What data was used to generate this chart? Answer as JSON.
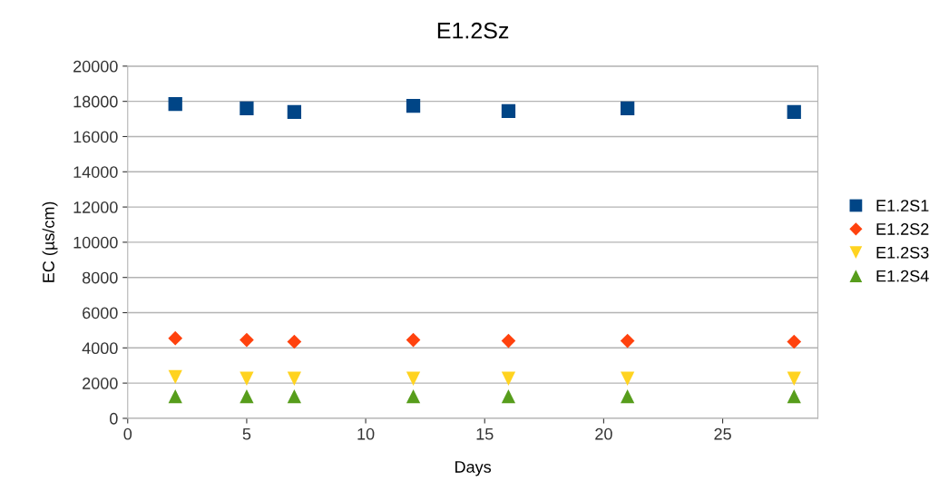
{
  "chart_data": {
    "type": "scatter",
    "title": "E1.2Sz",
    "xlabel": "Days",
    "ylabel": "EC (µs/cm)",
    "x": [
      2,
      5,
      7,
      12,
      16,
      21,
      28
    ],
    "series": [
      {
        "name": "E1.2S1",
        "color": "#004586",
        "marker": "square",
        "values": [
          17850,
          17600,
          17400,
          17750,
          17450,
          17600,
          17400
        ]
      },
      {
        "name": "E1.2S2",
        "color": "#ff420e",
        "marker": "diamond",
        "values": [
          4550,
          4450,
          4350,
          4450,
          4400,
          4400,
          4350
        ]
      },
      {
        "name": "E1.2S3",
        "color": "#ffd320",
        "marker": "triangle_down",
        "values": [
          2350,
          2250,
          2250,
          2250,
          2250,
          2250,
          2250
        ]
      },
      {
        "name": "E1.2S4",
        "color": "#579d1c",
        "marker": "triangle",
        "values": [
          1250,
          1250,
          1250,
          1250,
          1250,
          1250,
          1250
        ]
      }
    ],
    "xlim": [
      0,
      29
    ],
    "xticks": [
      0,
      5,
      10,
      15,
      20,
      25
    ],
    "ylim": [
      0,
      20000
    ],
    "yticks": [
      0,
      2000,
      4000,
      6000,
      8000,
      10000,
      12000,
      14000,
      16000,
      18000,
      20000
    ],
    "grid": "y",
    "legend": "right"
  }
}
